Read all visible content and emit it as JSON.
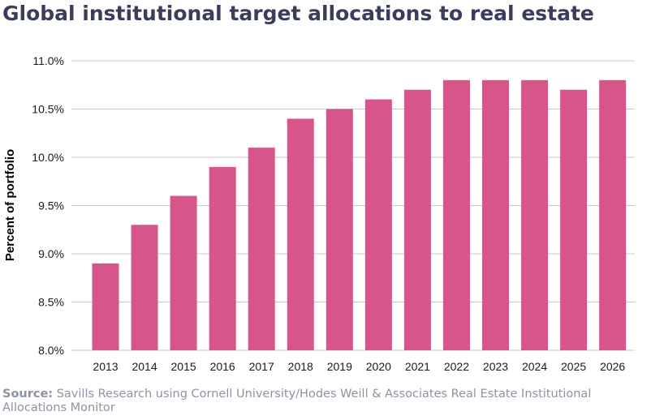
{
  "title": "Global institutional target allocations to real estate",
  "source": {
    "label": "Source:",
    "text": "Savills Research using Cornell University/Hodes Weill & Associates Real Estate Institutional Allocations Monitor"
  },
  "colors": {
    "bar": "#d6558a",
    "grid": "#c8c8c8",
    "title": "#3a3d5c",
    "source": "#8d93a3"
  },
  "chart_data": {
    "type": "bar",
    "title": "Global institutional target allocations to real estate",
    "xlabel": "",
    "ylabel": "Percent of portfolio",
    "categories": [
      "2013",
      "2014",
      "2015",
      "2016",
      "2017",
      "2018",
      "2019",
      "2020",
      "2021",
      "2022",
      "2023",
      "2024",
      "2025",
      "2026"
    ],
    "values": [
      8.9,
      9.3,
      9.6,
      9.9,
      10.1,
      10.4,
      10.5,
      10.6,
      10.7,
      10.8,
      10.8,
      10.8,
      10.7,
      10.8
    ],
    "ylim": [
      8.0,
      11.0
    ],
    "yticks": [
      8.0,
      8.5,
      9.0,
      9.5,
      10.0,
      10.5,
      11.0
    ],
    "ytick_labels": [
      "8.0%",
      "8.5%",
      "9.0%",
      "9.5%",
      "10.0%",
      "10.5%",
      "11.0%"
    ],
    "grid": "horizontal",
    "legend": "none"
  }
}
